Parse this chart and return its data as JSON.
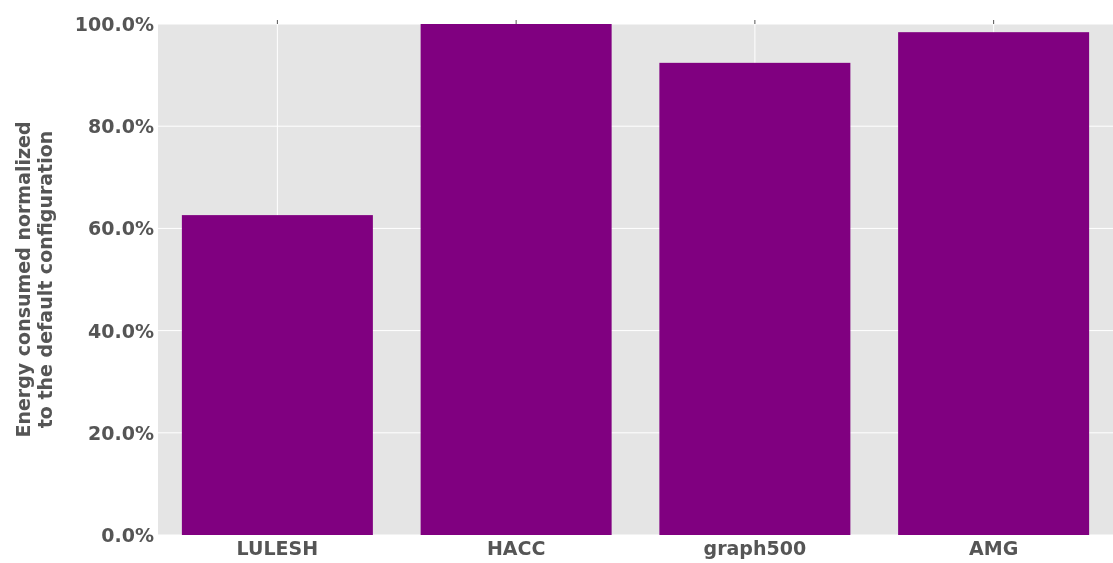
{
  "chart_data": {
    "type": "bar",
    "ylabel": "Energy consumed normalized\nto the default configuration",
    "categories": [
      "LULESH",
      "HACC",
      "graph500",
      "AMG"
    ],
    "values": [
      62.6,
      100,
      92.4,
      98.4
    ],
    "color": "#800080",
    "ylim": [
      0,
      100
    ],
    "yticks": [
      {
        "value": 0,
        "label": "0.0%"
      },
      {
        "value": 20,
        "label": "20.0%"
      },
      {
        "value": 40,
        "label": "40.0%"
      },
      {
        "value": 60,
        "label": "60.0%"
      },
      {
        "value": 80,
        "label": "80.0%"
      },
      {
        "value": 100,
        "label": "100.0%"
      }
    ],
    "grid": true
  }
}
